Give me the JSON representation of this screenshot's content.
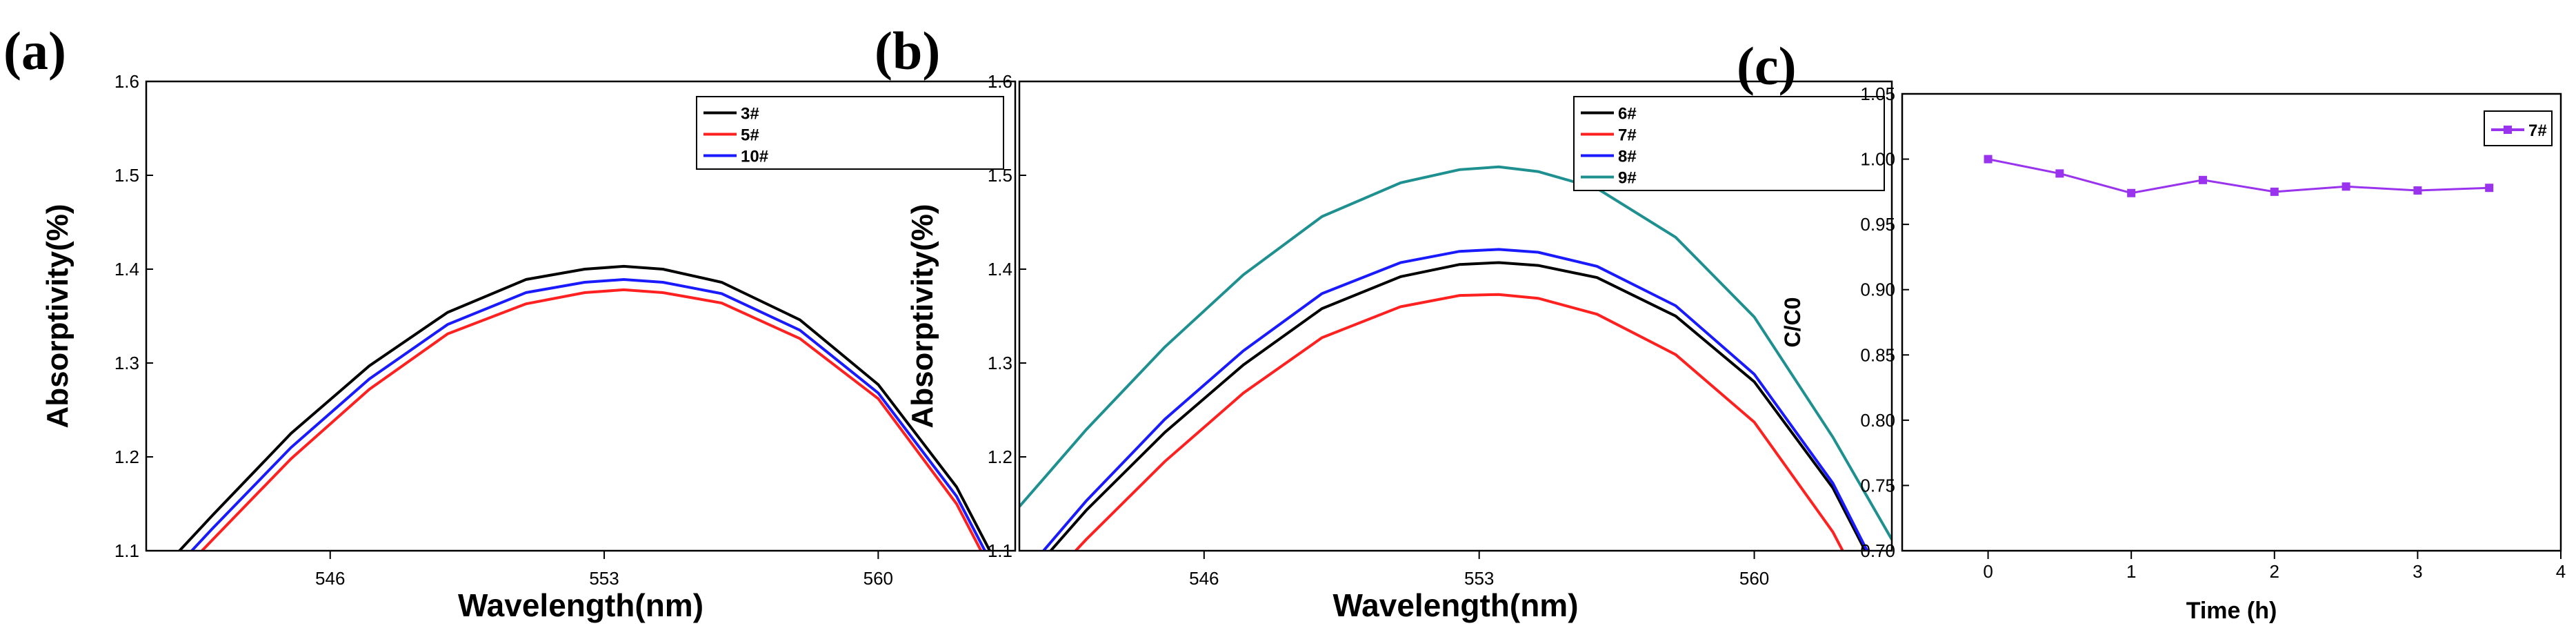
{
  "chart_data": [
    {
      "type": "line",
      "panel_label": "(a)",
      "xlabel": "Wavelength(nm)",
      "ylabel": "Absorptivity(%)",
      "xlim": [
        541.3,
        563.5
      ],
      "ylim": [
        1.1,
        1.6
      ],
      "x_ticks": [
        546,
        553,
        560
      ],
      "y_ticks": [
        1.1,
        1.2,
        1.3,
        1.4,
        1.5,
        1.6
      ],
      "legend_position": "top-right",
      "series": [
        {
          "name": "3#",
          "color": "#000000",
          "x": [
            541.3,
            543,
            545,
            547,
            549,
            551,
            552.5,
            553.5,
            554.5,
            556,
            558,
            560,
            562,
            563.5
          ],
          "y": [
            1.062,
            1.138,
            1.225,
            1.297,
            1.354,
            1.389,
            1.4,
            1.403,
            1.4,
            1.386,
            1.346,
            1.277,
            1.168,
            1.048
          ]
        },
        {
          "name": "5#",
          "color": "#ff2020",
          "x": [
            541.3,
            543,
            545,
            547,
            549,
            551,
            552.5,
            553.5,
            554.5,
            556,
            558,
            560,
            562,
            563.5
          ],
          "y": [
            1.038,
            1.112,
            1.198,
            1.272,
            1.331,
            1.363,
            1.375,
            1.378,
            1.375,
            1.364,
            1.326,
            1.262,
            1.15,
            1.03
          ]
        },
        {
          "name": "10#",
          "color": "#1a1aff",
          "x": [
            541.3,
            543,
            545,
            547,
            549,
            551,
            552.5,
            553.5,
            554.5,
            556,
            558,
            560,
            562,
            563.5
          ],
          "y": [
            1.048,
            1.124,
            1.21,
            1.283,
            1.341,
            1.375,
            1.386,
            1.389,
            1.386,
            1.374,
            1.335,
            1.268,
            1.158,
            1.038
          ]
        }
      ]
    },
    {
      "type": "line",
      "panel_label": "(b)",
      "xlabel": "Wavelength(nm)",
      "ylabel": "Absorptivity(%)",
      "xlim": [
        541.3,
        563.5
      ],
      "ylim": [
        1.1,
        1.6
      ],
      "x_ticks": [
        546,
        553,
        560
      ],
      "y_ticks": [
        1.1,
        1.2,
        1.3,
        1.4,
        1.5,
        1.6
      ],
      "legend_position": "top-right",
      "series": [
        {
          "name": "6#",
          "color": "#000000",
          "x": [
            541.3,
            543,
            545,
            547,
            549,
            551,
            552.5,
            553.5,
            554.5,
            556,
            558,
            560,
            562,
            563.5
          ],
          "y": [
            1.062,
            1.143,
            1.226,
            1.298,
            1.358,
            1.392,
            1.405,
            1.407,
            1.404,
            1.391,
            1.35,
            1.28,
            1.167,
            1.045
          ]
        },
        {
          "name": "7#",
          "color": "#ff2020",
          "x": [
            541.3,
            543,
            545,
            547,
            549,
            551,
            552.5,
            553.5,
            554.5,
            556,
            558,
            560,
            562,
            563.5
          ],
          "y": [
            1.036,
            1.112,
            1.195,
            1.268,
            1.327,
            1.36,
            1.372,
            1.373,
            1.369,
            1.352,
            1.309,
            1.237,
            1.12,
            1.0
          ]
        },
        {
          "name": "8#",
          "color": "#1a1aff",
          "x": [
            541.3,
            543,
            545,
            547,
            549,
            551,
            552.5,
            553.5,
            554.5,
            556,
            558,
            560,
            562,
            563.5
          ],
          "y": [
            1.07,
            1.153,
            1.24,
            1.313,
            1.374,
            1.407,
            1.419,
            1.421,
            1.418,
            1.403,
            1.361,
            1.288,
            1.172,
            1.048
          ]
        },
        {
          "name": "9#",
          "color": "#1f9090",
          "x": [
            541.3,
            543,
            545,
            547,
            549,
            551,
            552.5,
            553.5,
            554.5,
            556,
            558,
            560,
            562,
            563.5
          ],
          "y": [
            1.147,
            1.229,
            1.317,
            1.394,
            1.456,
            1.492,
            1.506,
            1.509,
            1.504,
            1.486,
            1.434,
            1.349,
            1.221,
            1.112
          ]
        }
      ]
    },
    {
      "type": "line",
      "panel_label": "(c)",
      "xlabel": "Time (h)",
      "ylabel": "C/C0",
      "xlim": [
        -0.6,
        4
      ],
      "ylim": [
        0.7,
        1.05
      ],
      "x_ticks": [
        0,
        1,
        2,
        3,
        4
      ],
      "y_ticks": [
        0.7,
        0.75,
        0.8,
        0.85,
        0.9,
        0.95,
        1.0,
        1.05
      ],
      "legend_position": "top-right",
      "series": [
        {
          "name": "7#",
          "color": "#9933ee",
          "marker": "square",
          "x": [
            0,
            0.5,
            1,
            1.5,
            2,
            2.5,
            3,
            3.5
          ],
          "y": [
            1.0,
            0.989,
            0.974,
            0.984,
            0.975,
            0.979,
            0.976,
            0.978
          ]
        }
      ]
    }
  ]
}
